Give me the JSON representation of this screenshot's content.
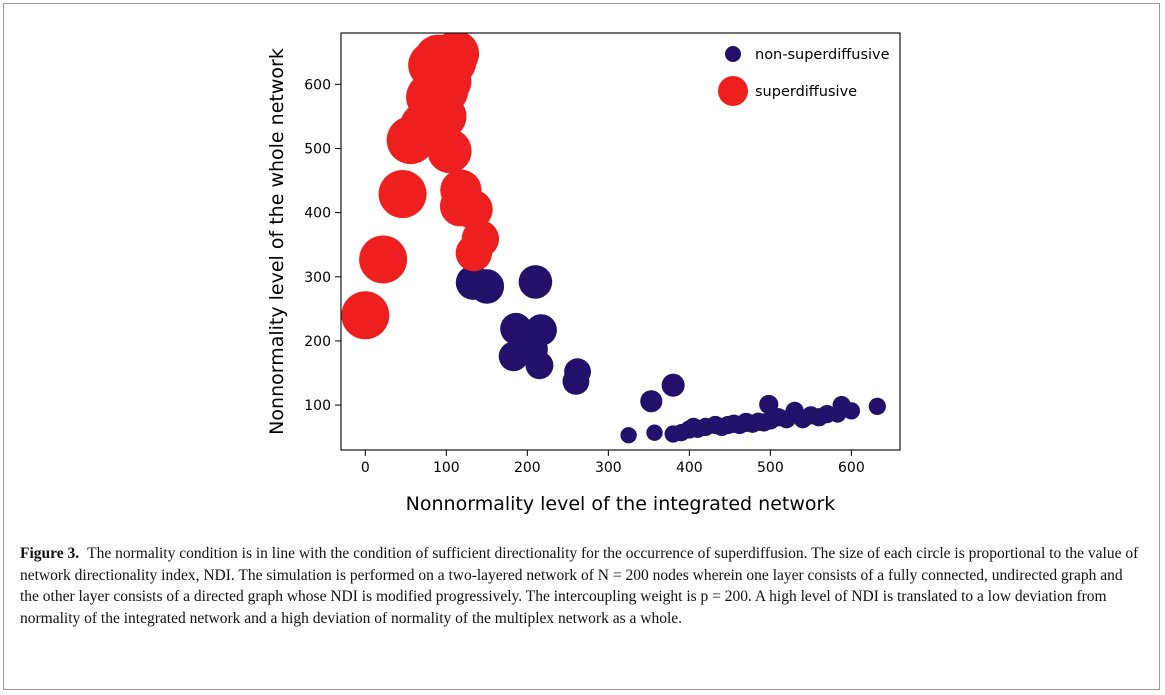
{
  "figure": {
    "label": "Figure 3.",
    "caption": "The normality condition is in line with the condition of sufficient directionality for the occurrence of superdiffusion. The size of each circle is proportional to the value of network directionality index, NDI. The simulation is performed on a two-layered network of N = 200 nodes wherein one layer consists of a fully connected, undirected graph and the other layer consists of a directed graph whose NDI is modified progressively. The intercoupling weight is p = 200. A high level of NDI is translated to a low deviation from normality of the integrated network and a high deviation of normality of the multiplex network as a whole."
  },
  "chart_data": {
    "type": "scatter",
    "title": "",
    "xlabel": "Nonnormality level of the integrated network",
    "ylabel": "Nonnormality level of the whole network",
    "xlim": [
      -30,
      660
    ],
    "ylim": [
      30,
      680
    ],
    "xticks": [
      0,
      100,
      200,
      300,
      400,
      500,
      600
    ],
    "yticks": [
      100,
      200,
      300,
      400,
      500,
      600
    ],
    "grid": false,
    "legend_position": "top-right",
    "size_encoding": "NDI",
    "series": [
      {
        "name": "non-superdiffusive",
        "color": "#23106b",
        "points": [
          {
            "x": 133,
            "y": 291,
            "ndi": 0.72
          },
          {
            "x": 150,
            "y": 285,
            "ndi": 0.72
          },
          {
            "x": 210,
            "y": 292,
            "ndi": 0.7
          },
          {
            "x": 186,
            "y": 219,
            "ndi": 0.66
          },
          {
            "x": 217,
            "y": 217,
            "ndi": 0.66
          },
          {
            "x": 183,
            "y": 176,
            "ndi": 0.62
          },
          {
            "x": 207,
            "y": 187,
            "ndi": 0.62
          },
          {
            "x": 215,
            "y": 162,
            "ndi": 0.58
          },
          {
            "x": 262,
            "y": 152,
            "ndi": 0.56
          },
          {
            "x": 260,
            "y": 137,
            "ndi": 0.56
          },
          {
            "x": 380,
            "y": 131,
            "ndi": 0.48
          },
          {
            "x": 353,
            "y": 106,
            "ndi": 0.46
          },
          {
            "x": 325,
            "y": 53,
            "ndi": 0.34
          },
          {
            "x": 357,
            "y": 57,
            "ndi": 0.34
          },
          {
            "x": 380,
            "y": 55,
            "ndi": 0.36
          },
          {
            "x": 390,
            "y": 57,
            "ndi": 0.36
          },
          {
            "x": 400,
            "y": 62,
            "ndi": 0.38
          },
          {
            "x": 405,
            "y": 66,
            "ndi": 0.38
          },
          {
            "x": 410,
            "y": 63,
            "ndi": 0.38
          },
          {
            "x": 420,
            "y": 66,
            "ndi": 0.38
          },
          {
            "x": 432,
            "y": 69,
            "ndi": 0.38
          },
          {
            "x": 440,
            "y": 66,
            "ndi": 0.38
          },
          {
            "x": 448,
            "y": 69,
            "ndi": 0.38
          },
          {
            "x": 455,
            "y": 71,
            "ndi": 0.38
          },
          {
            "x": 462,
            "y": 69,
            "ndi": 0.38
          },
          {
            "x": 470,
            "y": 73,
            "ndi": 0.4
          },
          {
            "x": 478,
            "y": 71,
            "ndi": 0.38
          },
          {
            "x": 485,
            "y": 74,
            "ndi": 0.38
          },
          {
            "x": 492,
            "y": 73,
            "ndi": 0.38
          },
          {
            "x": 498,
            "y": 101,
            "ndi": 0.4
          },
          {
            "x": 500,
            "y": 76,
            "ndi": 0.38
          },
          {
            "x": 510,
            "y": 81,
            "ndi": 0.38
          },
          {
            "x": 520,
            "y": 78,
            "ndi": 0.38
          },
          {
            "x": 530,
            "y": 91,
            "ndi": 0.38
          },
          {
            "x": 540,
            "y": 78,
            "ndi": 0.38
          },
          {
            "x": 550,
            "y": 84,
            "ndi": 0.38
          },
          {
            "x": 560,
            "y": 81,
            "ndi": 0.38
          },
          {
            "x": 570,
            "y": 86,
            "ndi": 0.38
          },
          {
            "x": 583,
            "y": 86,
            "ndi": 0.36
          },
          {
            "x": 588,
            "y": 100,
            "ndi": 0.38
          },
          {
            "x": 600,
            "y": 91,
            "ndi": 0.36
          },
          {
            "x": 632,
            "y": 98,
            "ndi": 0.36
          }
        ]
      },
      {
        "name": "superdiffusive",
        "color": "#ee1f1f",
        "points": [
          {
            "x": 0,
            "y": 240,
            "ndi": 1.0
          },
          {
            "x": 22,
            "y": 327,
            "ndi": 1.0
          },
          {
            "x": 46,
            "y": 429,
            "ndi": 1.0
          },
          {
            "x": 56,
            "y": 513,
            "ndi": 1.0
          },
          {
            "x": 72,
            "y": 535,
            "ndi": 0.98
          },
          {
            "x": 80,
            "y": 580,
            "ndi": 1.0
          },
          {
            "x": 82,
            "y": 630,
            "ndi": 0.98
          },
          {
            "x": 90,
            "y": 640,
            "ndi": 1.0
          },
          {
            "x": 98,
            "y": 590,
            "ndi": 0.98
          },
          {
            "x": 102,
            "y": 605,
            "ndi": 0.98
          },
          {
            "x": 108,
            "y": 635,
            "ndi": 0.98
          },
          {
            "x": 112,
            "y": 648,
            "ndi": 0.96
          },
          {
            "x": 97,
            "y": 550,
            "ndi": 0.94
          },
          {
            "x": 104,
            "y": 496,
            "ndi": 0.92
          },
          {
            "x": 118,
            "y": 435,
            "ndi": 0.86
          },
          {
            "x": 117,
            "y": 410,
            "ndi": 0.84
          },
          {
            "x": 133,
            "y": 405,
            "ndi": 0.82
          },
          {
            "x": 142,
            "y": 359,
            "ndi": 0.78
          },
          {
            "x": 134,
            "y": 337,
            "ndi": 0.76
          }
        ]
      }
    ]
  }
}
